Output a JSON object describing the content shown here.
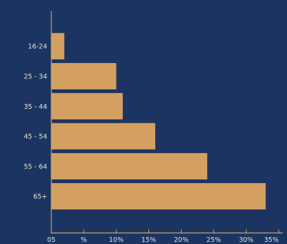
{
  "chart_data": {
    "type": "bar",
    "orientation": "horizontal",
    "categories": [
      "16-24",
      "25 - 34",
      "35 - 44",
      "45 - 54",
      "55 - 64",
      "65+"
    ],
    "values": [
      2,
      10,
      11,
      16,
      24,
      33
    ],
    "x_tick_labels": [
      "05",
      "%",
      "10%",
      "15%",
      "20%",
      "25%",
      "30%",
      "35%"
    ],
    "xlim": [
      0,
      35
    ],
    "title": "",
    "xlabel": "",
    "ylabel": "",
    "grid": false,
    "colors": {
      "background": "#1c3461",
      "bar": "#d4a062",
      "axis": "#c9a46a",
      "text": "#e8e2d6"
    }
  }
}
